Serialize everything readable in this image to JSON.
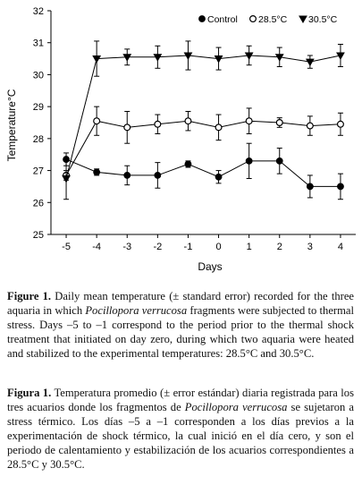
{
  "chart_data": {
    "type": "line",
    "xlabel": "Days",
    "ylabel": "Temperature°C",
    "x": [
      -5,
      -4,
      -3,
      -2,
      -1,
      0,
      1,
      2,
      3,
      4
    ],
    "xlim": [
      -5.5,
      4.5
    ],
    "ylim": [
      25,
      32
    ],
    "yticks": [
      25,
      26,
      27,
      28,
      29,
      30,
      31,
      32
    ],
    "legend_position": "top-right",
    "series": [
      {
        "name": "Control",
        "marker": "filled-circle",
        "values": [
          27.35,
          26.95,
          26.85,
          26.85,
          27.2,
          26.8,
          27.3,
          27.3,
          26.5,
          26.5
        ],
        "errors": [
          0.2,
          0.1,
          0.3,
          0.4,
          0.1,
          0.2,
          0.55,
          0.4,
          0.35,
          0.4
        ]
      },
      {
        "name": "28.5°C",
        "marker": "open-circle",
        "values": [
          26.85,
          28.55,
          28.35,
          28.45,
          28.55,
          28.35,
          28.55,
          28.5,
          28.4,
          28.45
        ],
        "errors": [
          0.15,
          0.45,
          0.5,
          0.3,
          0.3,
          0.4,
          0.4,
          0.15,
          0.3,
          0.35
        ]
      },
      {
        "name": "30.5°C",
        "marker": "filled-triangle-down",
        "values": [
          26.75,
          30.5,
          30.55,
          30.55,
          30.6,
          30.5,
          30.6,
          30.55,
          30.4,
          30.6
        ],
        "errors": [
          0.65,
          0.55,
          0.25,
          0.35,
          0.45,
          0.35,
          0.3,
          0.3,
          0.2,
          0.35
        ]
      }
    ]
  },
  "caption_en": {
    "label": "Figure 1.",
    "t1": " Daily mean temperature (± standard error) recorded for the three aquaria in which ",
    "species": "Pocillopora verrucosa",
    "t2": " fragments were subjected to thermal stress. Days –5 to –1 correspond to the period prior to the thermal shock treatment that initiated on day zero, during which two aquaria were heated and stabilized to the experimental temperatures: 28.5°C and 30.5°C."
  },
  "caption_es": {
    "label": "Figura 1.",
    "t1": " Temperatura promedio (± error estándar) diaria registrada para los tres acuarios donde los fragmentos de ",
    "species": "Pocillopora verrucosa",
    "t2": " se sujetaron a stress térmico. Los días –5 a –1 corresponden a los días previos a la experimentación de shock térmico, la cual inició en el día cero, y son el periodo de calentamiento y estabilización de los acuarios correspondientes a 28.5°C y 30.5°C."
  }
}
